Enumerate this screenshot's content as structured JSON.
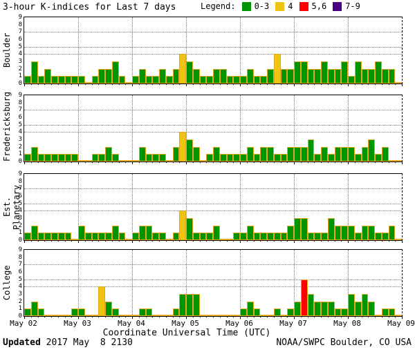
{
  "title": "3-hour K-indices for Last 7 days",
  "legend": {
    "label": "Legend:",
    "items": [
      {
        "label": "0-3",
        "color": "#009400"
      },
      {
        "label": "4",
        "color": "#f0c413"
      },
      {
        "label": "5,6",
        "color": "#ff0000"
      },
      {
        "label": "7-9",
        "color": "#4b0082"
      }
    ]
  },
  "footer": {
    "updated_label": "Updated",
    "updated_value": " 2017 May  8 2130",
    "source": "NOAA/SWPC Boulder, CO USA"
  },
  "chart_data": {
    "type": "bar",
    "title": "3-hour K-indices for Last 7 days",
    "xlabel": "Coordinate Universal Time (UTC)",
    "x_labels": [
      "May 02",
      "May 03",
      "May 04",
      "May 05",
      "May 06",
      "May 07",
      "May 08",
      "May 09"
    ],
    "ylim": [
      0,
      9
    ],
    "yticks": [
      0,
      1,
      2,
      3,
      4,
      5,
      6,
      7,
      8,
      9
    ],
    "bars_per_day": 8,
    "days": 7,
    "dotted_hlines_at": [
      4,
      5,
      7
    ],
    "grid": "dotted day boundaries vertical, dotted K=4,5,7 horizontal",
    "legend_position": "top-right",
    "color_scale": {
      "0-3": "#009400",
      "4": "#f0c413",
      "5-6": "#ff0000",
      "7-9": "#4b0082"
    },
    "bar_outline_color": "#e3a81e",
    "panels": [
      {
        "station": "Boulder",
        "values": [
          1,
          3,
          1,
          2,
          1,
          1,
          1,
          1,
          1,
          0,
          1,
          2,
          2,
          3,
          1,
          0,
          1,
          2,
          1,
          1,
          2,
          1,
          2,
          4,
          3,
          2,
          1,
          1,
          2,
          2,
          1,
          1,
          1,
          2,
          1,
          1,
          2,
          4,
          2,
          2,
          3,
          3,
          2,
          2,
          3,
          2,
          2,
          3,
          1,
          3,
          2,
          2,
          3,
          2,
          2,
          0
        ]
      },
      {
        "station": "Fredericksburg",
        "values": [
          1,
          2,
          1,
          1,
          1,
          1,
          1,
          1,
          0,
          0,
          1,
          1,
          2,
          1,
          0,
          0,
          0,
          2,
          1,
          1,
          1,
          0,
          2,
          4,
          3,
          2,
          0,
          1,
          2,
          1,
          1,
          1,
          1,
          2,
          1,
          2,
          2,
          1,
          1,
          2,
          2,
          2,
          3,
          1,
          2,
          1,
          2,
          2,
          2,
          1,
          2,
          3,
          1,
          2,
          0,
          0
        ]
      },
      {
        "station": "Est. Planetary",
        "values": [
          1,
          2,
          1,
          1,
          1,
          1,
          1,
          0,
          2,
          1,
          1,
          1,
          1,
          2,
          1,
          0,
          1,
          2,
          2,
          1,
          1,
          0,
          1,
          4,
          3,
          1,
          1,
          1,
          2,
          0,
          0,
          1,
          1,
          2,
          1,
          1,
          1,
          1,
          1,
          2,
          3,
          3,
          1,
          1,
          1,
          3,
          2,
          2,
          2,
          1,
          2,
          2,
          1,
          1,
          2,
          0
        ]
      },
      {
        "station": "College",
        "values": [
          1,
          2,
          1,
          0,
          0,
          0,
          0,
          1,
          1,
          0,
          0,
          4,
          2,
          1,
          0,
          0,
          0,
          1,
          1,
          0,
          0,
          0,
          1,
          3,
          3,
          3,
          0,
          0,
          0,
          0,
          0,
          0,
          1,
          2,
          1,
          0,
          0,
          1,
          0,
          1,
          2,
          5,
          3,
          2,
          2,
          2,
          1,
          1,
          3,
          2,
          3,
          2,
          0,
          1,
          1,
          0
        ]
      }
    ]
  }
}
